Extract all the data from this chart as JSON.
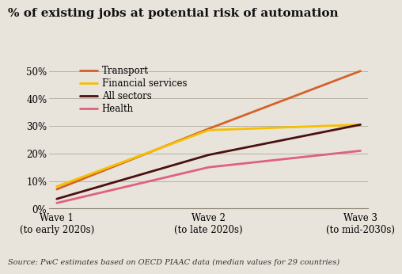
{
  "title": "% of existing jobs at potential risk of automation",
  "source": "Source: PwC estimates based on OECD PIAAC data (median values for 29 countries)",
  "x_labels": [
    "Wave 1\n(to early 2020s)",
    "Wave 2\n(to late 2020s)",
    "Wave 3\n(to mid-2030s)"
  ],
  "x_values": [
    0,
    1,
    2
  ],
  "series": [
    {
      "label": "Transport",
      "color": "#D4622A",
      "values": [
        0.07,
        0.29,
        0.5
      ]
    },
    {
      "label": "Financial services",
      "color": "#F5C000",
      "values": [
        0.08,
        0.285,
        0.305
      ]
    },
    {
      "label": "All sectors",
      "color": "#4A1010",
      "values": [
        0.035,
        0.195,
        0.305
      ]
    },
    {
      "label": "Health",
      "color": "#E06080",
      "values": [
        0.02,
        0.15,
        0.21
      ]
    }
  ],
  "ylim": [
    0,
    0.545
  ],
  "yticks": [
    0.0,
    0.1,
    0.2,
    0.3,
    0.4,
    0.5
  ],
  "background_color": "#e8e4dc",
  "title_fontsize": 11,
  "source_fontsize": 7,
  "legend_fontsize": 8.5,
  "tick_fontsize": 8.5
}
